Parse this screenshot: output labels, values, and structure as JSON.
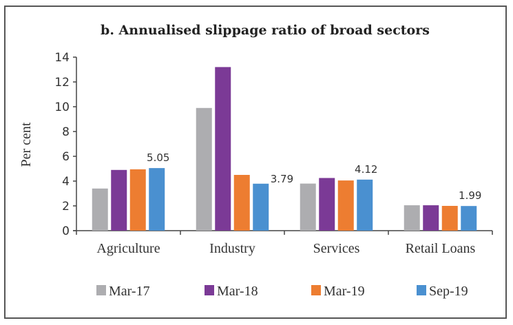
{
  "chart_data": {
    "type": "bar",
    "title": "b. Annualised slippage ratio of broad sectors",
    "xlabel": "",
    "ylabel": "Per cent",
    "ylim": [
      0,
      14
    ],
    "yticks": [
      0,
      2,
      4,
      6,
      8,
      10,
      12,
      14
    ],
    "grid": false,
    "legend_position": "bottom",
    "categories": [
      "Agriculture",
      "Industry",
      "Services",
      "Retail Loans"
    ],
    "series": [
      {
        "name": "Mar-17",
        "color": "#ADADB0",
        "values": [
          3.4,
          9.9,
          3.8,
          2.05
        ]
      },
      {
        "name": "Mar-18",
        "color": "#7B3A96",
        "values": [
          4.9,
          13.2,
          4.25,
          2.05
        ]
      },
      {
        "name": "Mar-19",
        "color": "#ED7D31",
        "values": [
          4.95,
          4.5,
          4.05,
          2.0
        ]
      },
      {
        "name": "Sep-19",
        "color": "#4A90D0",
        "values": [
          5.05,
          3.79,
          4.12,
          1.99
        ]
      }
    ],
    "data_labels": [
      {
        "series": "Sep-19",
        "category": "Agriculture",
        "text": "5.05"
      },
      {
        "series": "Sep-19",
        "category": "Industry",
        "text": "3.79"
      },
      {
        "series": "Sep-19",
        "category": "Services",
        "text": "4.12"
      },
      {
        "series": "Sep-19",
        "category": "Retail Loans",
        "text": "1.99"
      }
    ]
  }
}
